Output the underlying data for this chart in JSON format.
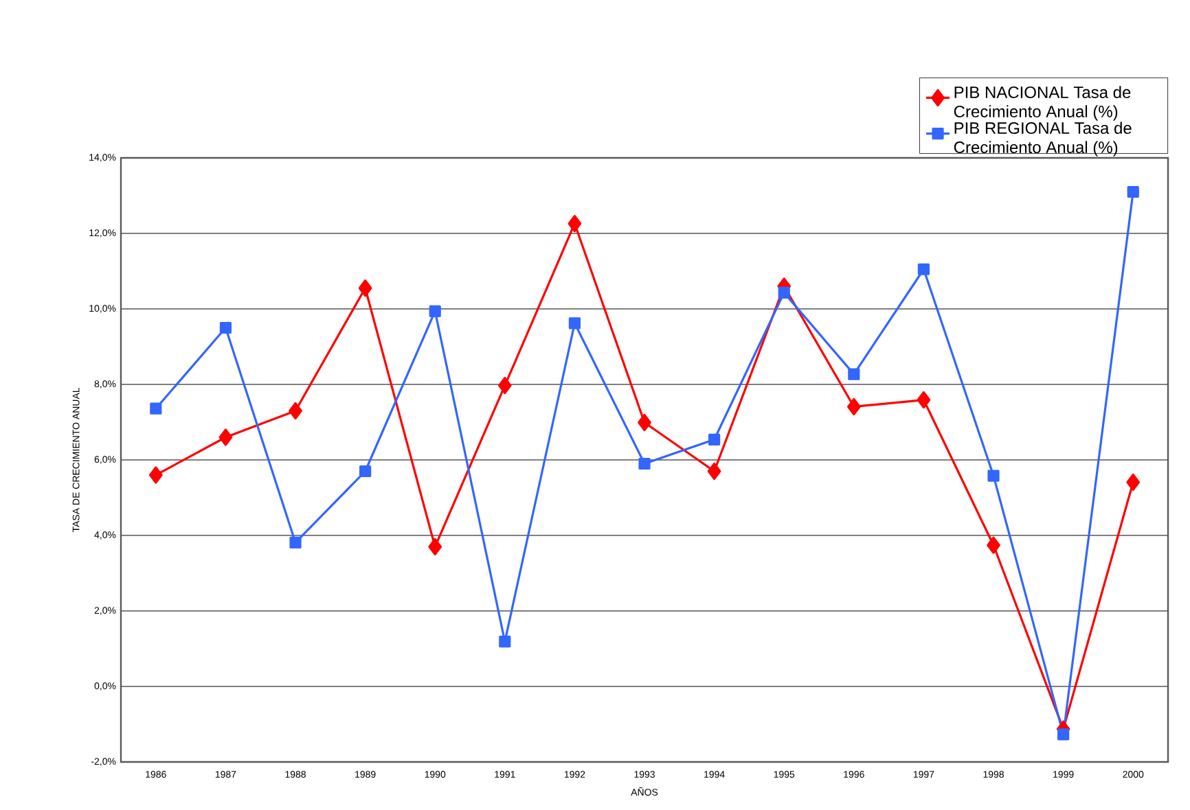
{
  "chart_data": {
    "type": "line",
    "xlabel": "AÑOS",
    "ylabel": "TASA DE CRECIMIENTO ANUAL",
    "categories": [
      "1986",
      "1987",
      "1988",
      "1989",
      "1990",
      "1991",
      "1992",
      "1993",
      "1994",
      "1995",
      "1996",
      "1997",
      "1998",
      "1999",
      "2000"
    ],
    "series": [
      {
        "name": "PIB NACIONAL Tasa de Crecimiento Anual (%)",
        "color": "#ff0000",
        "marker": "diamond",
        "values": [
          5.6,
          6.6,
          7.3,
          10.55,
          3.7,
          7.97,
          12.26,
          6.99,
          5.7,
          10.6,
          7.41,
          7.59,
          3.74,
          -1.13,
          5.41
        ]
      },
      {
        "name": "PIB REGIONAL Tasa de Crecimiento Anual (%)",
        "color": "#3366ff",
        "marker": "square",
        "values": [
          7.36,
          9.5,
          3.81,
          5.7,
          9.94,
          1.19,
          9.62,
          5.9,
          6.54,
          10.43,
          8.27,
          11.05,
          5.58,
          -1.27,
          13.1
        ]
      }
    ],
    "ylim": [
      -2,
      14
    ],
    "yticks": [
      {
        "value": -2,
        "label": "-2,0%"
      },
      {
        "value": 0,
        "label": "0,0%"
      },
      {
        "value": 2,
        "label": "2,0%"
      },
      {
        "value": 4,
        "label": "4,0%"
      },
      {
        "value": 6,
        "label": "6,0%"
      },
      {
        "value": 8,
        "label": "8,0%"
      },
      {
        "value": 10,
        "label": "10,0%"
      },
      {
        "value": 12,
        "label": "12,0%"
      },
      {
        "value": 14,
        "label": "14,0%"
      }
    ],
    "grid": "y",
    "legend": "top right"
  }
}
